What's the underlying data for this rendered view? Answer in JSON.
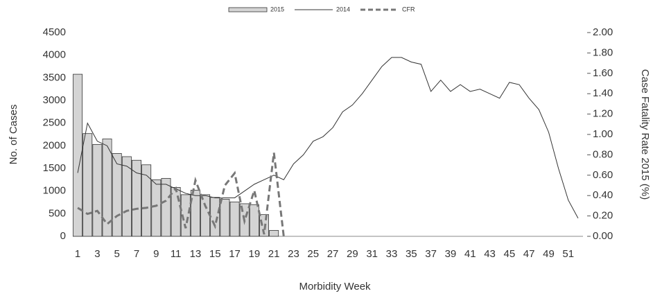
{
  "chart_data": {
    "type": "combo",
    "x_label": "Morbidity Week",
    "y_label": "No. of Cases",
    "y2_label": "Case Fatality Rate 2015 (%)",
    "categories": [
      1,
      null,
      3,
      null,
      5,
      null,
      7,
      null,
      9,
      null,
      11,
      null,
      13,
      null,
      15,
      null,
      17,
      null,
      19,
      null,
      21,
      null,
      23,
      null,
      25,
      null,
      27,
      null,
      29,
      null,
      31,
      null,
      33,
      null,
      35,
      null,
      37,
      null,
      39,
      null,
      41,
      null,
      43,
      null,
      45,
      null,
      47,
      null,
      49,
      null,
      51,
      null
    ],
    "ylim": [
      0,
      4500
    ],
    "yticks": [
      0,
      500,
      1000,
      1500,
      2000,
      2500,
      3000,
      3500,
      4000,
      4500
    ],
    "y2lim": [
      0,
      2
    ],
    "y2ticks": [
      {
        "value": 0,
        "label": "0.00"
      },
      {
        "value": 0.2,
        "label": "0.20"
      },
      {
        "value": 0.4,
        "label": "0.40"
      },
      {
        "value": 0.6,
        "label": "0.60"
      },
      {
        "value": 0.8,
        "label": "0.80"
      },
      {
        "value": 1,
        "label": "1.00"
      },
      {
        "value": 1.2,
        "label": "1.20"
      },
      {
        "value": 1.4,
        "label": "1.40"
      },
      {
        "value": 1.6,
        "label": "1.60"
      },
      {
        "value": 1.8,
        "label": "1.80"
      },
      {
        "value": 2,
        "label": "2.00"
      }
    ],
    "series": [
      {
        "name": "2015",
        "kind": "bar",
        "color": "#d4d4d4",
        "values": [
          3580,
          2270,
          2030,
          2150,
          1830,
          1760,
          1680,
          1580,
          1250,
          1280,
          1080,
          920,
          1020,
          920,
          860,
          820,
          760,
          720,
          700,
          480,
          130,
          null,
          null,
          null,
          null,
          null,
          null,
          null,
          null,
          null,
          null,
          null,
          null,
          null,
          null,
          null,
          null,
          null,
          null,
          null,
          null,
          null,
          null,
          null,
          null,
          null,
          null,
          null,
          null,
          null,
          null,
          null
        ]
      },
      {
        "name": "2014",
        "kind": "line",
        "color": "#333333",
        "values": [
          1400,
          2500,
          2100,
          2000,
          1600,
          1550,
          1400,
          1350,
          1150,
          1150,
          1050,
          950,
          900,
          900,
          850,
          850,
          850,
          1000,
          1150,
          1250,
          1350,
          1250,
          1600,
          1800,
          2100,
          2200,
          2400,
          2750,
          2900,
          3150,
          3450,
          3750,
          3950,
          3950,
          3850,
          3800,
          3200,
          3450,
          3200,
          3350,
          3200,
          3250,
          3150,
          3050,
          3400,
          3350,
          3050,
          2800,
          2300,
          1500,
          800,
          400
        ]
      },
      {
        "name": "CFR",
        "kind": "dashed",
        "color": "#777777",
        "axis": "y2",
        "values": [
          0.28,
          0.22,
          0.25,
          0.12,
          0.2,
          0.25,
          0.27,
          0.28,
          0.3,
          0.35,
          0.47,
          0.08,
          0.55,
          0.3,
          0.1,
          0.5,
          0.62,
          0.15,
          0.45,
          0.02,
          0.82,
          0,
          null,
          null,
          null,
          null,
          null,
          null,
          null,
          null,
          null,
          null,
          null,
          null,
          null,
          null,
          null,
          null,
          null,
          null,
          null,
          null,
          null,
          null,
          null,
          null,
          null,
          null,
          null,
          null,
          null,
          null
        ]
      }
    ]
  }
}
